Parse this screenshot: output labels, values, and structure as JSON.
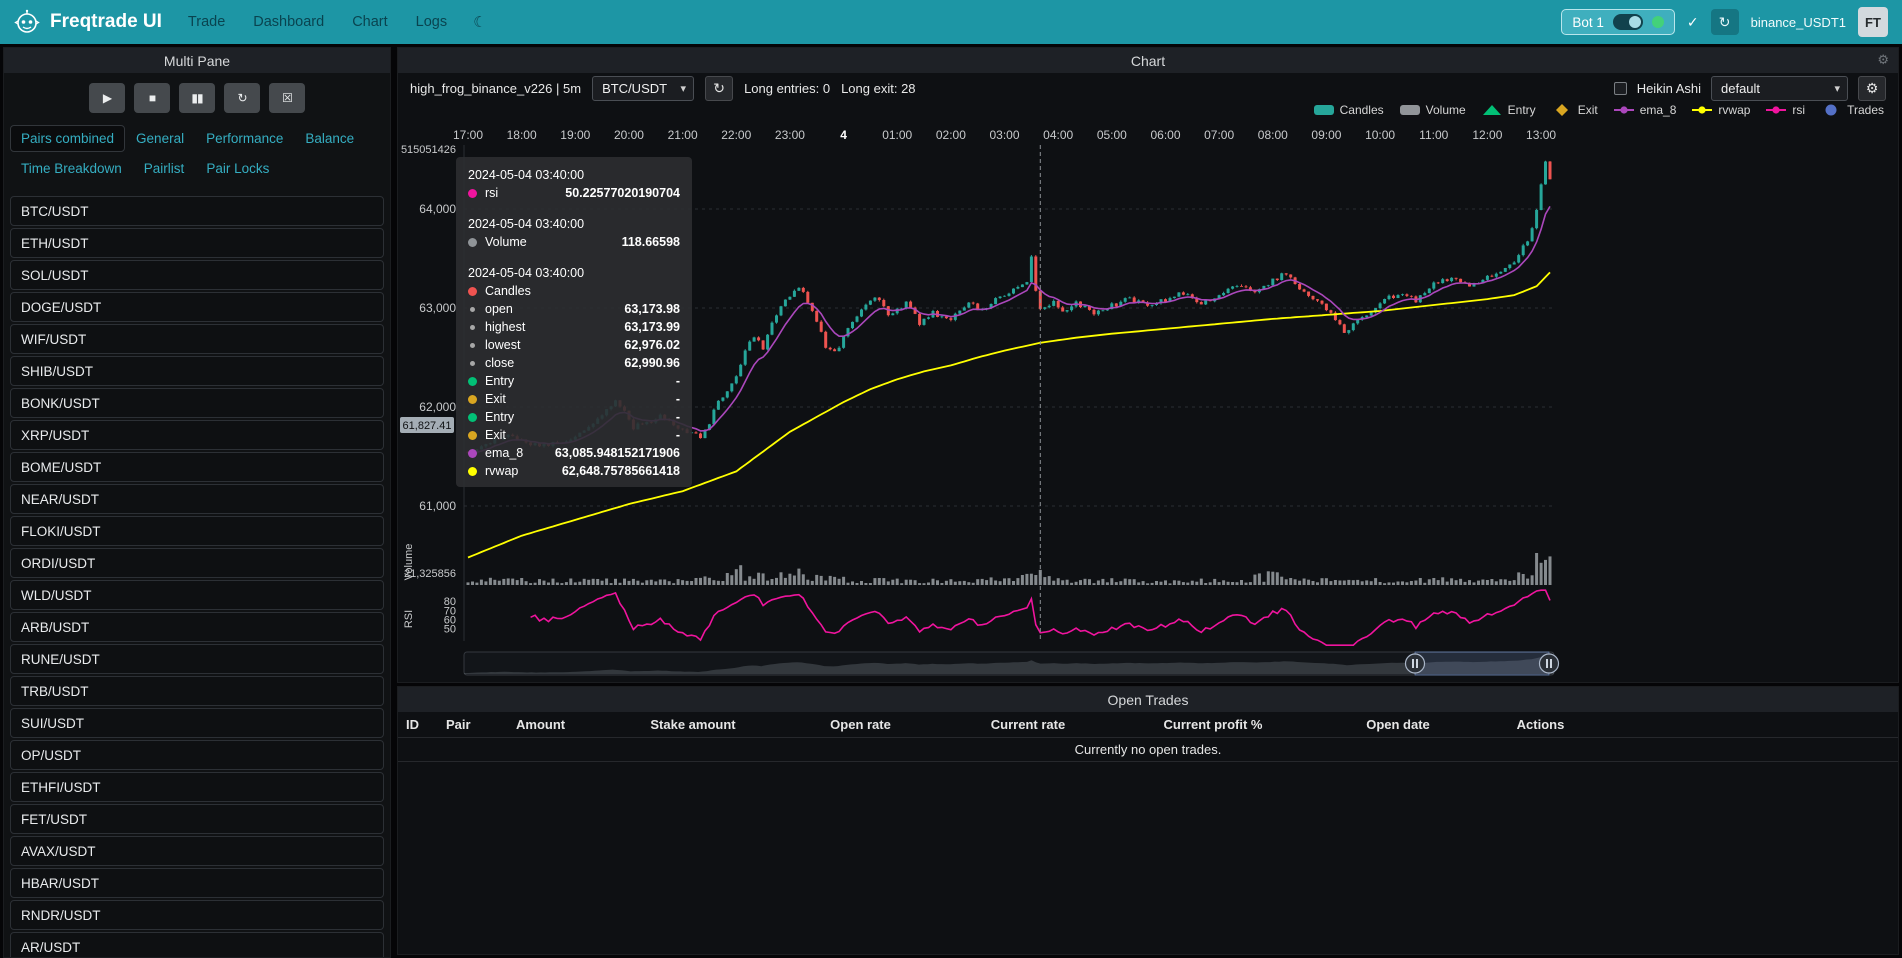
{
  "icons": {
    "play": "▶",
    "stop": "■",
    "pause": "▮▮",
    "reload": "↻",
    "forceexit": "☒",
    "check": "✓",
    "gear": "⚙",
    "theme": "☾",
    "caret": "▾"
  },
  "navbar": {
    "brand": "Freqtrade UI",
    "items": [
      {
        "label": "Trade"
      },
      {
        "label": "Dashboard"
      },
      {
        "label": "Chart"
      },
      {
        "label": "Logs"
      }
    ],
    "bot": {
      "name": "Bot 1",
      "online_color": "#43d17a"
    },
    "login": "binance_USDT1",
    "avatar": "FT"
  },
  "multipane": {
    "title": "Multi Pane",
    "controls": [
      {
        "name": "play"
      },
      {
        "name": "stop"
      },
      {
        "name": "pause"
      },
      {
        "name": "reload"
      },
      {
        "name": "forceexit"
      }
    ],
    "tabs": [
      {
        "label": "Pairs combined",
        "active": true
      },
      {
        "label": "General"
      },
      {
        "label": "Performance"
      },
      {
        "label": "Balance"
      },
      {
        "label": "Time Breakdown"
      },
      {
        "label": "Pairlist"
      },
      {
        "label": "Pair Locks"
      }
    ],
    "pairs": [
      "BTC/USDT",
      "ETH/USDT",
      "SOL/USDT",
      "DOGE/USDT",
      "WIF/USDT",
      "SHIB/USDT",
      "BONK/USDT",
      "XRP/USDT",
      "BOME/USDT",
      "NEAR/USDT",
      "FLOKI/USDT",
      "ORDI/USDT",
      "WLD/USDT",
      "ARB/USDT",
      "RUNE/USDT",
      "TRB/USDT",
      "SUI/USDT",
      "OP/USDT",
      "ETHFI/USDT",
      "FET/USDT",
      "AVAX/USDT",
      "HBAR/USDT",
      "RNDR/USDT",
      "AR/USDT"
    ]
  },
  "chart": {
    "title": "Chart",
    "strategy_line": "high_frog_binance_v226 | 5m",
    "pair_select": "BTC/USDT",
    "entries_text": "Long entries: 0",
    "exits_text": "Long exit: 28",
    "heikin_label": "Heikin Ashi",
    "plot_config_select": "default",
    "axis_pointer_price": "61,827.41",
    "legend": [
      {
        "label": "Candles",
        "color": "#26a69a",
        "shape": "rect"
      },
      {
        "label": "Volume",
        "color": "#909498",
        "shape": "rect"
      },
      {
        "label": "Entry",
        "color": "#02c076",
        "shape": "triangle"
      },
      {
        "label": "Exit",
        "color": "#d9a621",
        "shape": "diamond"
      },
      {
        "label": "ema_8",
        "color": "#ab47bc",
        "shape": "line"
      },
      {
        "label": "rvwap",
        "color": "#ffff00",
        "shape": "line"
      },
      {
        "label": "rsi",
        "color": "#f0149e",
        "shape": "line"
      },
      {
        "label": "Trades",
        "color": "#5470c6",
        "shape": "circle"
      }
    ],
    "tooltip": {
      "sections": [
        {
          "date": "2024-05-04 03:40:00",
          "rows": [
            {
              "dot": "#f0149e",
              "label": "rsi",
              "value": "50.22577020190704"
            }
          ]
        },
        {
          "date": "2024-05-04 03:40:00",
          "rows": [
            {
              "dot": "#909498",
              "label": "Volume",
              "value": "118.66598"
            }
          ]
        },
        {
          "date": "2024-05-04 03:40:00",
          "rows": [
            {
              "dot": "#ef5350",
              "label": "Candles",
              "value": ""
            },
            {
              "dot": "#a7a7a7",
              "small": true,
              "label": "open",
              "value": "63,173.98"
            },
            {
              "dot": "#a7a7a7",
              "small": true,
              "label": "highest",
              "value": "63,173.99"
            },
            {
              "dot": "#a7a7a7",
              "small": true,
              "label": "lowest",
              "value": "62,976.02"
            },
            {
              "dot": "#a7a7a7",
              "small": true,
              "label": "close",
              "value": "62,990.96"
            },
            {
              "dot": "#02c076",
              "label": "Entry",
              "value": "-"
            },
            {
              "dot": "#d9a621",
              "label": "Exit",
              "value": "-"
            },
            {
              "dot": "#02c076",
              "label": "Entry",
              "value": "-"
            },
            {
              "dot": "#d9a621",
              "label": "Exit",
              "value": "-"
            },
            {
              "dot": "#ab47bc",
              "label": "ema_8",
              "value": "63,085.948152171906"
            },
            {
              "dot": "#ffff00",
              "label": "rvwap",
              "value": "62,648.75785661418"
            }
          ]
        }
      ]
    }
  },
  "chart_data": {
    "type": "candlestick",
    "pair": "BTC/USDT",
    "timeframe_minutes": 5,
    "total_minutes": 1210,
    "x_axis_ticks": [
      "17:00",
      "18:00",
      "19:00",
      "20:00",
      "21:00",
      "22:00",
      "23:00",
      "4",
      "01:00",
      "02:00",
      "03:00",
      "04:00",
      "05:00",
      "06:00",
      "07:00",
      "08:00",
      "09:00",
      "10:00",
      "11:00",
      "12:00",
      "13:00"
    ],
    "price_ticks": [
      64000,
      63000,
      62000,
      61000
    ],
    "price_tick_labels": [
      "64,000",
      "63,000",
      "62,000",
      "61,000"
    ],
    "upper_axis_label": "515051426",
    "volume_axis_label": "21,325856",
    "volume_pane_label": "Volume",
    "rsi_pane_label": "RSI",
    "rsi_ticks": [
      80,
      70,
      60,
      50
    ],
    "crosshair_minute": 640,
    "ema_period": 8,
    "rsi_period": 14,
    "anchor_candle": {
      "minute": 640,
      "open": 63173.98,
      "high": 63173.99,
      "low": 62976.02,
      "close": 62990.96,
      "volume": 118.66598
    },
    "price_waypoints": [
      [
        0,
        61520
      ],
      [
        40,
        61720
      ],
      [
        80,
        61600
      ],
      [
        120,
        61680
      ],
      [
        150,
        61900
      ],
      [
        165,
        62080
      ],
      [
        185,
        61800
      ],
      [
        215,
        61900
      ],
      [
        245,
        61750
      ],
      [
        262,
        61680
      ],
      [
        280,
        62050
      ],
      [
        300,
        62300
      ],
      [
        318,
        62750
      ],
      [
        330,
        62600
      ],
      [
        345,
        62950
      ],
      [
        360,
        63120
      ],
      [
        372,
        63230
      ],
      [
        385,
        62980
      ],
      [
        400,
        62620
      ],
      [
        412,
        62560
      ],
      [
        425,
        62800
      ],
      [
        440,
        63000
      ],
      [
        455,
        63120
      ],
      [
        470,
        62930
      ],
      [
        490,
        63050
      ],
      [
        505,
        62850
      ],
      [
        520,
        62950
      ],
      [
        540,
        62880
      ],
      [
        560,
        63050
      ],
      [
        575,
        62980
      ],
      [
        595,
        63120
      ],
      [
        610,
        63180
      ],
      [
        625,
        63280
      ],
      [
        631,
        63450
      ],
      [
        636,
        63540
      ],
      [
        640,
        63174
      ],
      [
        645,
        62990
      ],
      [
        655,
        63060
      ],
      [
        665,
        62980
      ],
      [
        680,
        63050
      ],
      [
        700,
        62960
      ],
      [
        720,
        63020
      ],
      [
        740,
        63100
      ],
      [
        760,
        63020
      ],
      [
        780,
        63080
      ],
      [
        800,
        63150
      ],
      [
        820,
        63060
      ],
      [
        840,
        63120
      ],
      [
        860,
        63220
      ],
      [
        880,
        63150
      ],
      [
        900,
        63280
      ],
      [
        915,
        63350
      ],
      [
        930,
        63180
      ],
      [
        950,
        63080
      ],
      [
        965,
        62950
      ],
      [
        980,
        62760
      ],
      [
        1000,
        62900
      ],
      [
        1020,
        63050
      ],
      [
        1040,
        63150
      ],
      [
        1060,
        63080
      ],
      [
        1080,
        63250
      ],
      [
        1100,
        63300
      ],
      [
        1120,
        63220
      ],
      [
        1140,
        63300
      ],
      [
        1155,
        63380
      ],
      [
        1170,
        63480
      ],
      [
        1185,
        63680
      ],
      [
        1195,
        63980
      ],
      [
        1202,
        64330
      ],
      [
        1207,
        64510
      ],
      [
        1210,
        64280
      ]
    ],
    "forced_closes": [
      [
        630,
        63520
      ],
      [
        635,
        63173.98
      ],
      [
        640,
        62990.96
      ],
      [
        1205,
        64480
      ],
      [
        1210,
        64300
      ]
    ],
    "rvwap_waypoints": [
      [
        0,
        60480
      ],
      [
        60,
        60700
      ],
      [
        120,
        60860
      ],
      [
        180,
        61020
      ],
      [
        240,
        61150
      ],
      [
        300,
        61350
      ],
      [
        330,
        61550
      ],
      [
        360,
        61750
      ],
      [
        390,
        61900
      ],
      [
        420,
        62050
      ],
      [
        450,
        62180
      ],
      [
        480,
        62280
      ],
      [
        510,
        62360
      ],
      [
        540,
        62420
      ],
      [
        570,
        62500
      ],
      [
        600,
        62570
      ],
      [
        640,
        62648.76
      ],
      [
        680,
        62700
      ],
      [
        720,
        62740
      ],
      [
        780,
        62790
      ],
      [
        840,
        62840
      ],
      [
        900,
        62890
      ],
      [
        960,
        62930
      ],
      [
        1020,
        62970
      ],
      [
        1080,
        63030
      ],
      [
        1140,
        63090
      ],
      [
        1170,
        63130
      ],
      [
        1195,
        63220
      ],
      [
        1210,
        63360
      ]
    ],
    "volume_mult_waypoints": [
      [
        0,
        1
      ],
      [
        240,
        0.8
      ],
      [
        290,
        1.6
      ],
      [
        305,
        2.6
      ],
      [
        320,
        1.8
      ],
      [
        345,
        2.2
      ],
      [
        365,
        2.6
      ],
      [
        385,
        1.6
      ],
      [
        420,
        1.1
      ],
      [
        480,
        0.9
      ],
      [
        540,
        0.8
      ],
      [
        600,
        1.2
      ],
      [
        625,
        1.8
      ],
      [
        633,
        4.5
      ],
      [
        640,
        1.4
      ],
      [
        650,
        1.8
      ],
      [
        680,
        1
      ],
      [
        760,
        0.8
      ],
      [
        860,
        1
      ],
      [
        900,
        2
      ],
      [
        920,
        1.2
      ],
      [
        1000,
        0.9
      ],
      [
        1080,
        1
      ],
      [
        1140,
        1.2
      ],
      [
        1180,
        1.8
      ],
      [
        1192,
        3.5
      ],
      [
        1200,
        5.5
      ],
      [
        1206,
        7
      ],
      [
        1210,
        5
      ]
    ],
    "noise_amplitude": 26,
    "volume_base": [
      14,
      46
    ]
  },
  "open_trades": {
    "title": "Open Trades",
    "columns": [
      "ID",
      "Pair",
      "Amount",
      "Stake amount",
      "Open rate",
      "Current rate",
      "Current profit %",
      "Open date",
      "Actions"
    ],
    "empty_text": "Currently no open trades."
  }
}
